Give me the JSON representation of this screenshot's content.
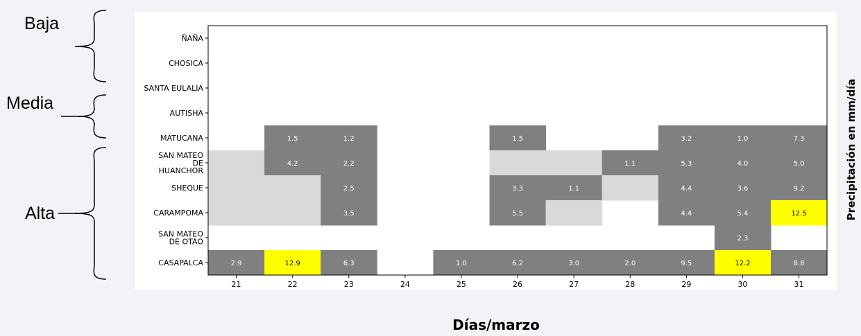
{
  "chart_data": {
    "type": "heatmap",
    "xlabel": "Días/marzo",
    "colorbar_label": "Precipitación en mm/día",
    "x_categories": [
      "21",
      "22",
      "23",
      "24",
      "25",
      "26",
      "27",
      "28",
      "29",
      "30",
      "31"
    ],
    "y_categories": [
      "ÑAÑA",
      "CHOSICA",
      "SANTA EULALIA",
      "AUTISHA",
      "MATUCANA",
      "SAN MATEO\nDE\nHUANCHOR",
      "SHEQUE",
      "CARAMPOMA",
      "SAN MATEO\nDE OTAO",
      "CASAPALCA"
    ],
    "values": [
      [
        null,
        null,
        null,
        null,
        null,
        null,
        null,
        null,
        null,
        null,
        null
      ],
      [
        null,
        null,
        null,
        null,
        null,
        null,
        null,
        null,
        null,
        null,
        null
      ],
      [
        null,
        null,
        null,
        null,
        null,
        null,
        null,
        null,
        null,
        null,
        null
      ],
      [
        null,
        null,
        null,
        null,
        null,
        null,
        null,
        null,
        null,
        null,
        null
      ],
      [
        null,
        1.5,
        1.2,
        null,
        null,
        1.5,
        null,
        null,
        3.2,
        1.0,
        7.3
      ],
      [
        0,
        4.2,
        2.2,
        null,
        null,
        0,
        0,
        1.1,
        5.3,
        4.0,
        5.0
      ],
      [
        0,
        0,
        2.5,
        null,
        null,
        3.3,
        1.1,
        0,
        4.4,
        3.6,
        9.2
      ],
      [
        0,
        0,
        3.5,
        null,
        null,
        5.5,
        0,
        null,
        4.4,
        5.4,
        12.5
      ],
      [
        null,
        null,
        null,
        null,
        null,
        null,
        null,
        null,
        null,
        2.3,
        null
      ],
      [
        2.9,
        12.9,
        6.3,
        null,
        1.0,
        6.2,
        3.0,
        2.0,
        9.5,
        12.2,
        8.8
      ]
    ],
    "color_scale": {
      "zero": "#d9d9d9",
      "normal": "#808080",
      "high": "#ffff00",
      "high_threshold": 10
    },
    "groups": [
      {
        "label": "Baja"
      },
      {
        "label": "Media"
      },
      {
        "label": "Alta"
      }
    ]
  }
}
